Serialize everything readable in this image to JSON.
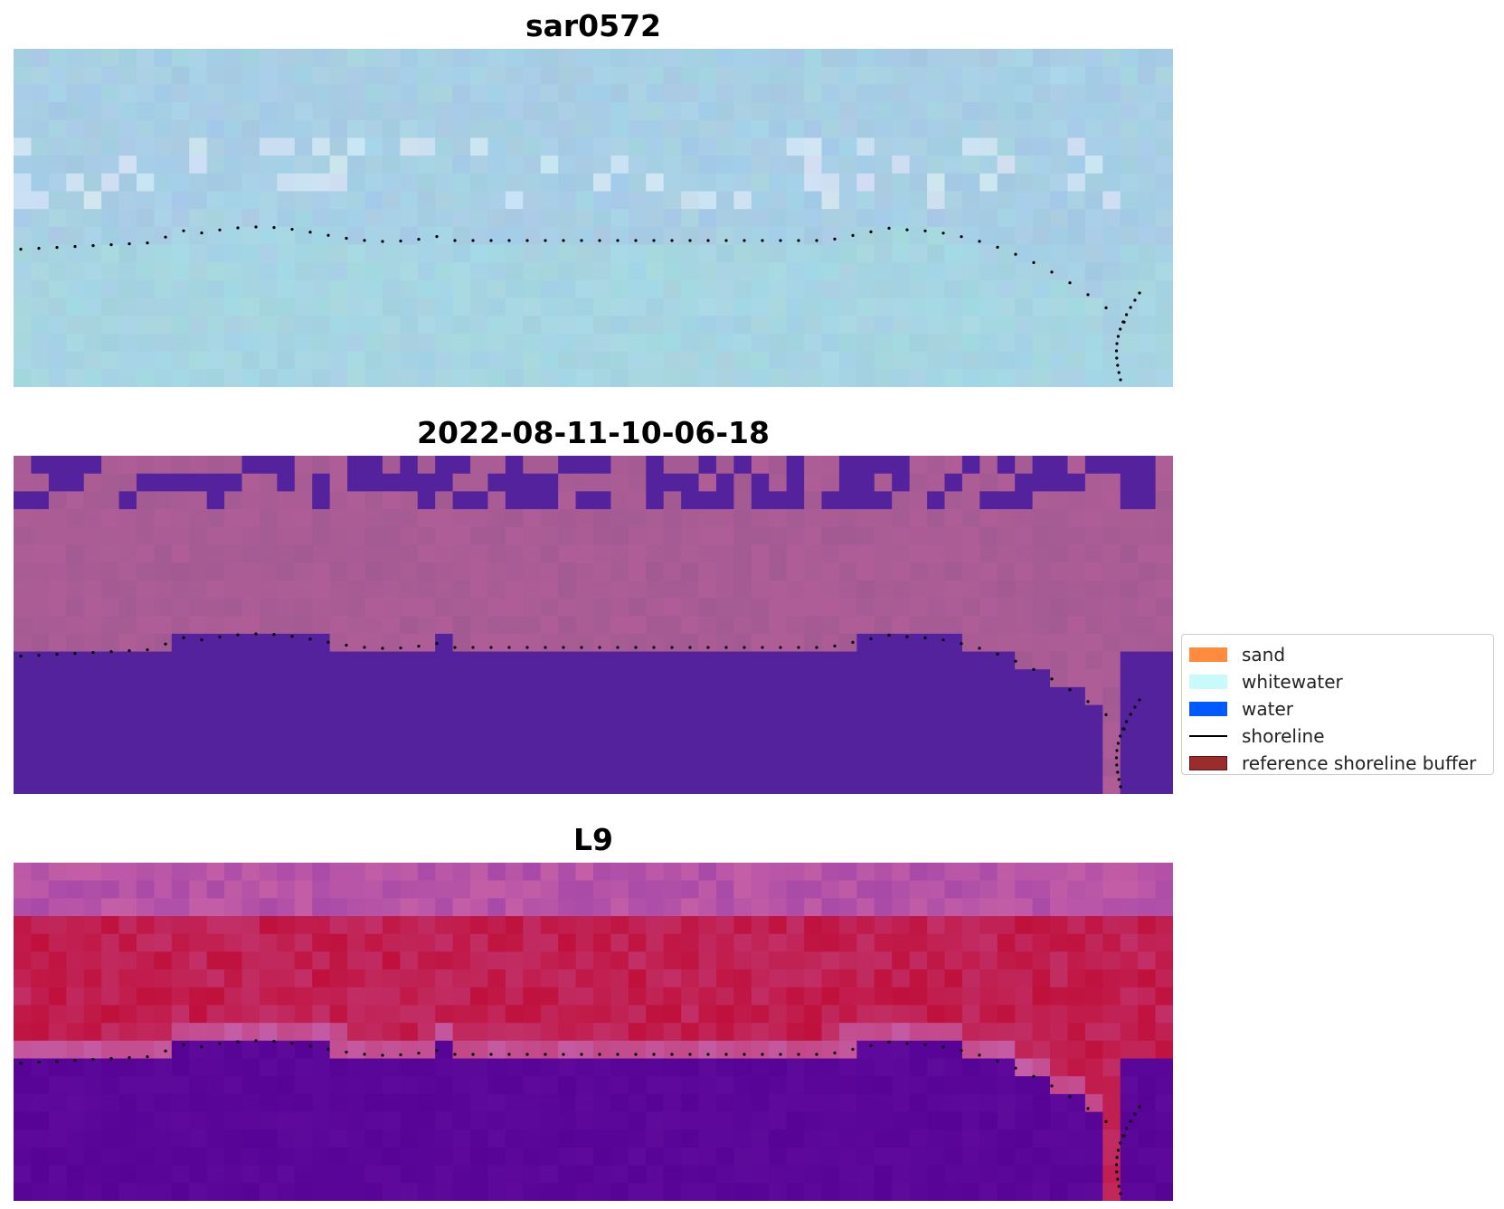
{
  "panels": [
    {
      "title": "sar0572",
      "palette": "sar"
    },
    {
      "title": "2022-08-11-10-06-18",
      "palette": "classified"
    },
    {
      "title": "L9",
      "palette": "index"
    }
  ],
  "grid": {
    "cols": 66,
    "rows": 19
  },
  "legend": {
    "items": [
      {
        "label": "sand",
        "kind": "patch",
        "color": "#ff8c3c",
        "edge": "#ff8c3c"
      },
      {
        "label": "whitewater",
        "kind": "patch",
        "color": "#c8fafa",
        "edge": "#c8fafa"
      },
      {
        "label": "water",
        "kind": "patch",
        "color": "#005aff",
        "edge": "#005aff"
      },
      {
        "label": "shoreline",
        "kind": "line",
        "color": "#000000"
      },
      {
        "label": "reference shoreline buffer",
        "kind": "patch",
        "color": "#9b2c2c",
        "edge": "#5a1414"
      }
    ]
  },
  "colors": {
    "sar_base": "#a6d6e2",
    "sar_sky": "#a8c8e6",
    "class_water": "#54229c",
    "class_land": "#a35a92",
    "index_water": "#560396",
    "index_land": "#c0103c",
    "index_mid": "#c45ea6"
  }
}
